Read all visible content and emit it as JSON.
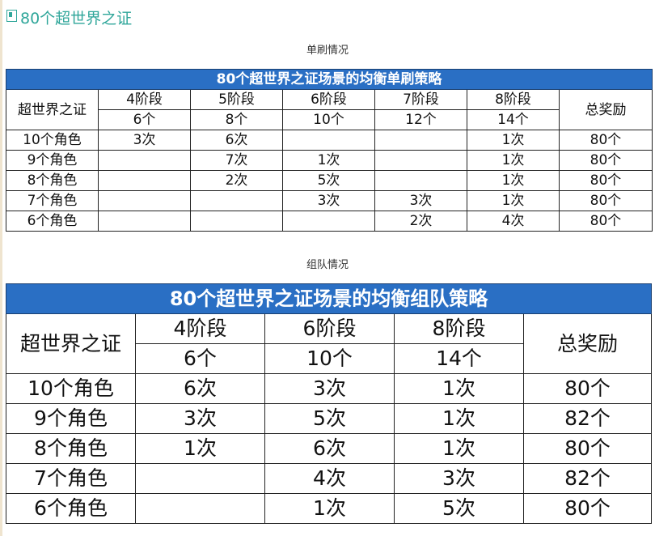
{
  "page": {
    "heading": "80个超世界之证",
    "caption1": "单刷情况",
    "caption2": "组队情况"
  },
  "solo": {
    "title": "80个超世界之证场景的均衡单刷策略",
    "corner": "超世界之证",
    "reward_header": "总奖励",
    "stages": [
      {
        "label": "4阶段",
        "count": "6个"
      },
      {
        "label": "5阶段",
        "count": "8个"
      },
      {
        "label": "6阶段",
        "count": "10个"
      },
      {
        "label": "7阶段",
        "count": "12个"
      },
      {
        "label": "8阶段",
        "count": "14个"
      }
    ],
    "rows": [
      {
        "label": "10个角色",
        "cells": [
          "3次",
          "6次",
          "",
          "",
          "1次"
        ],
        "total": "80个"
      },
      {
        "label": "9个角色",
        "cells": [
          "",
          "7次",
          "1次",
          "",
          "1次"
        ],
        "total": "80个"
      },
      {
        "label": "8个角色",
        "cells": [
          "",
          "2次",
          "5次",
          "",
          "1次"
        ],
        "total": "80个"
      },
      {
        "label": "7个角色",
        "cells": [
          "",
          "",
          "3次",
          "3次",
          "1次"
        ],
        "total": "80个"
      },
      {
        "label": "6个角色",
        "cells": [
          "",
          "",
          "",
          "2次",
          "4次"
        ],
        "total": "80个"
      }
    ]
  },
  "team": {
    "title": "80个超世界之证场景的均衡组队策略",
    "corner": "超世界之证",
    "reward_header": "总奖励",
    "stages": [
      {
        "label": "4阶段",
        "count": "6个"
      },
      {
        "label": "6阶段",
        "count": "10个"
      },
      {
        "label": "8阶段",
        "count": "14个"
      }
    ],
    "rows": [
      {
        "label": "10个角色",
        "cells": [
          "6次",
          "3次",
          "1次"
        ],
        "total": "80个"
      },
      {
        "label": "9个角色",
        "cells": [
          "3次",
          "5次",
          "1次"
        ],
        "total": "82个"
      },
      {
        "label": "8个角色",
        "cells": [
          "1次",
          "6次",
          "1次"
        ],
        "total": "80个"
      },
      {
        "label": "7个角色",
        "cells": [
          "",
          "4次",
          "3次"
        ],
        "total": "82个"
      },
      {
        "label": "6个角色",
        "cells": [
          "",
          "1次",
          "5次"
        ],
        "total": "80个"
      }
    ]
  },
  "colors": {
    "accent": "#2fa69a",
    "table_header_bg": "#2a6fc4",
    "count_text": "#e0242b"
  }
}
